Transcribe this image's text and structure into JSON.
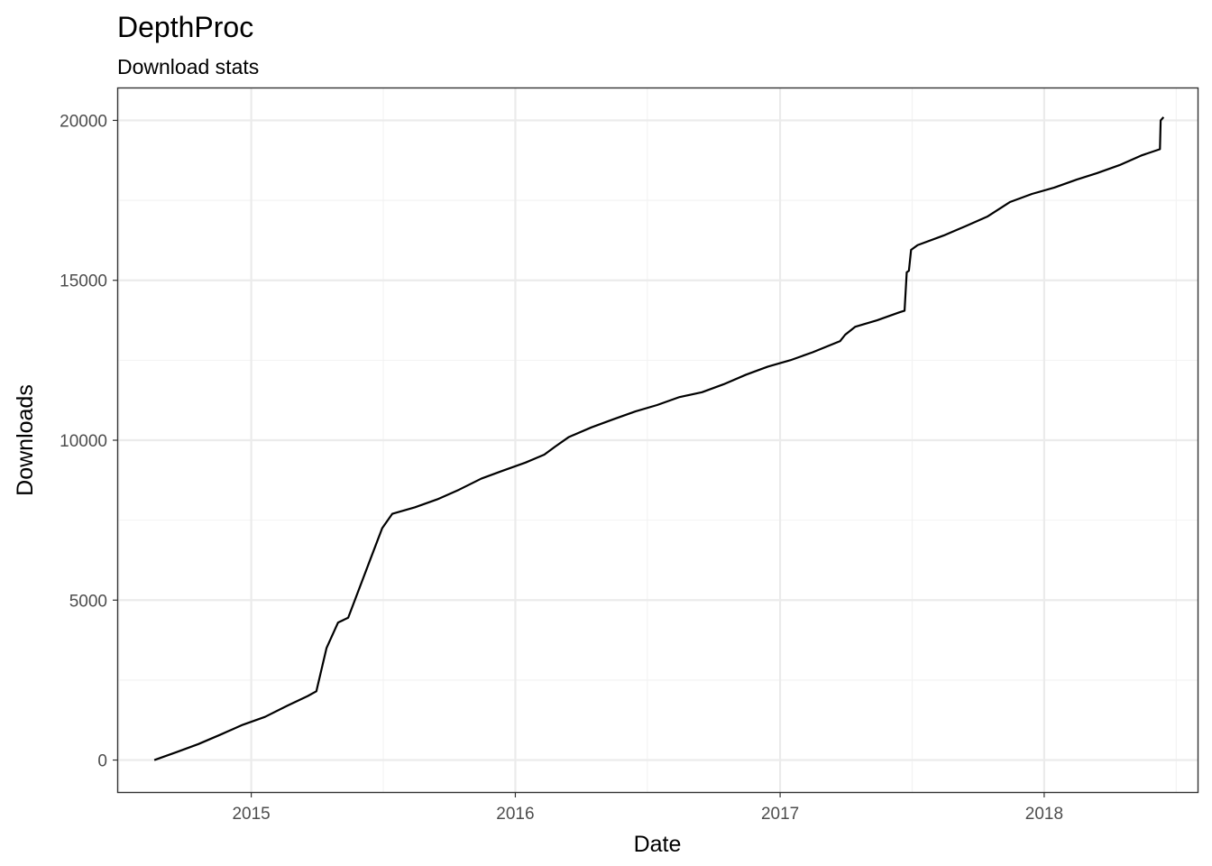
{
  "chart_data": {
    "type": "line",
    "title": "DepthProc",
    "subtitle": "Download stats",
    "xlabel": "Date",
    "ylabel": "Downloads",
    "x_type": "date",
    "xlim": [
      "2014-07-01",
      "2018-08-01"
    ],
    "ylim": [
      -1000,
      21000
    ],
    "x_ticks": [
      "2015-01-01",
      "2016-01-01",
      "2017-01-01",
      "2018-01-01"
    ],
    "x_tick_labels": [
      "2015",
      "2016",
      "2017",
      "2018"
    ],
    "y_ticks": [
      0,
      5000,
      10000,
      15000,
      20000
    ],
    "y_tick_labels": [
      "0",
      "5000",
      "10000",
      "15000",
      "20000"
    ],
    "grid": true,
    "legend": "none",
    "line_color": "#000000",
    "series": [
      {
        "x": [
          "2014-08-20",
          "2014-09-20",
          "2014-10-20",
          "2014-11-20",
          "2014-12-20",
          "2015-01-20",
          "2015-02-20",
          "2015-03-20",
          "2015-04-01",
          "2015-04-15",
          "2015-05-01",
          "2015-05-15",
          "2015-06-15",
          "2015-07-01",
          "2015-07-15",
          "2015-08-15",
          "2015-09-15",
          "2015-10-15",
          "2015-11-15",
          "2015-12-15",
          "2016-01-15",
          "2016-02-10",
          "2016-02-25",
          "2016-03-15",
          "2016-04-15",
          "2016-05-15",
          "2016-06-15",
          "2016-07-15",
          "2016-08-15",
          "2016-09-15",
          "2016-10-15",
          "2016-11-15",
          "2016-12-15",
          "2017-01-15",
          "2017-02-15",
          "2017-03-25",
          "2017-04-01",
          "2017-04-15",
          "2017-05-15",
          "2017-06-15",
          "2017-06-22",
          "2017-06-25",
          "2017-06-28",
          "2017-07-01",
          "2017-07-10",
          "2017-08-15",
          "2017-09-15",
          "2017-10-15",
          "2017-11-15",
          "2017-12-15",
          "2018-01-15",
          "2018-02-15",
          "2018-03-15",
          "2018-04-15",
          "2018-05-15",
          "2018-06-10",
          "2018-06-11",
          "2018-06-15"
        ],
        "y": [
          0,
          250,
          500,
          800,
          1100,
          1350,
          1700,
          2000,
          2150,
          3500,
          4300,
          4450,
          6300,
          7250,
          7700,
          7900,
          8150,
          8450,
          8800,
          9050,
          9300,
          9550,
          9800,
          10100,
          10400,
          10650,
          10900,
          11100,
          11350,
          11500,
          11750,
          12050,
          12300,
          12500,
          12750,
          13100,
          13300,
          13550,
          13750,
          14000,
          14050,
          15250,
          15300,
          15950,
          16100,
          16400,
          16700,
          17000,
          17450,
          17700,
          17900,
          18150,
          18350,
          18600,
          18900,
          19100,
          20000,
          20100
        ]
      }
    ]
  }
}
